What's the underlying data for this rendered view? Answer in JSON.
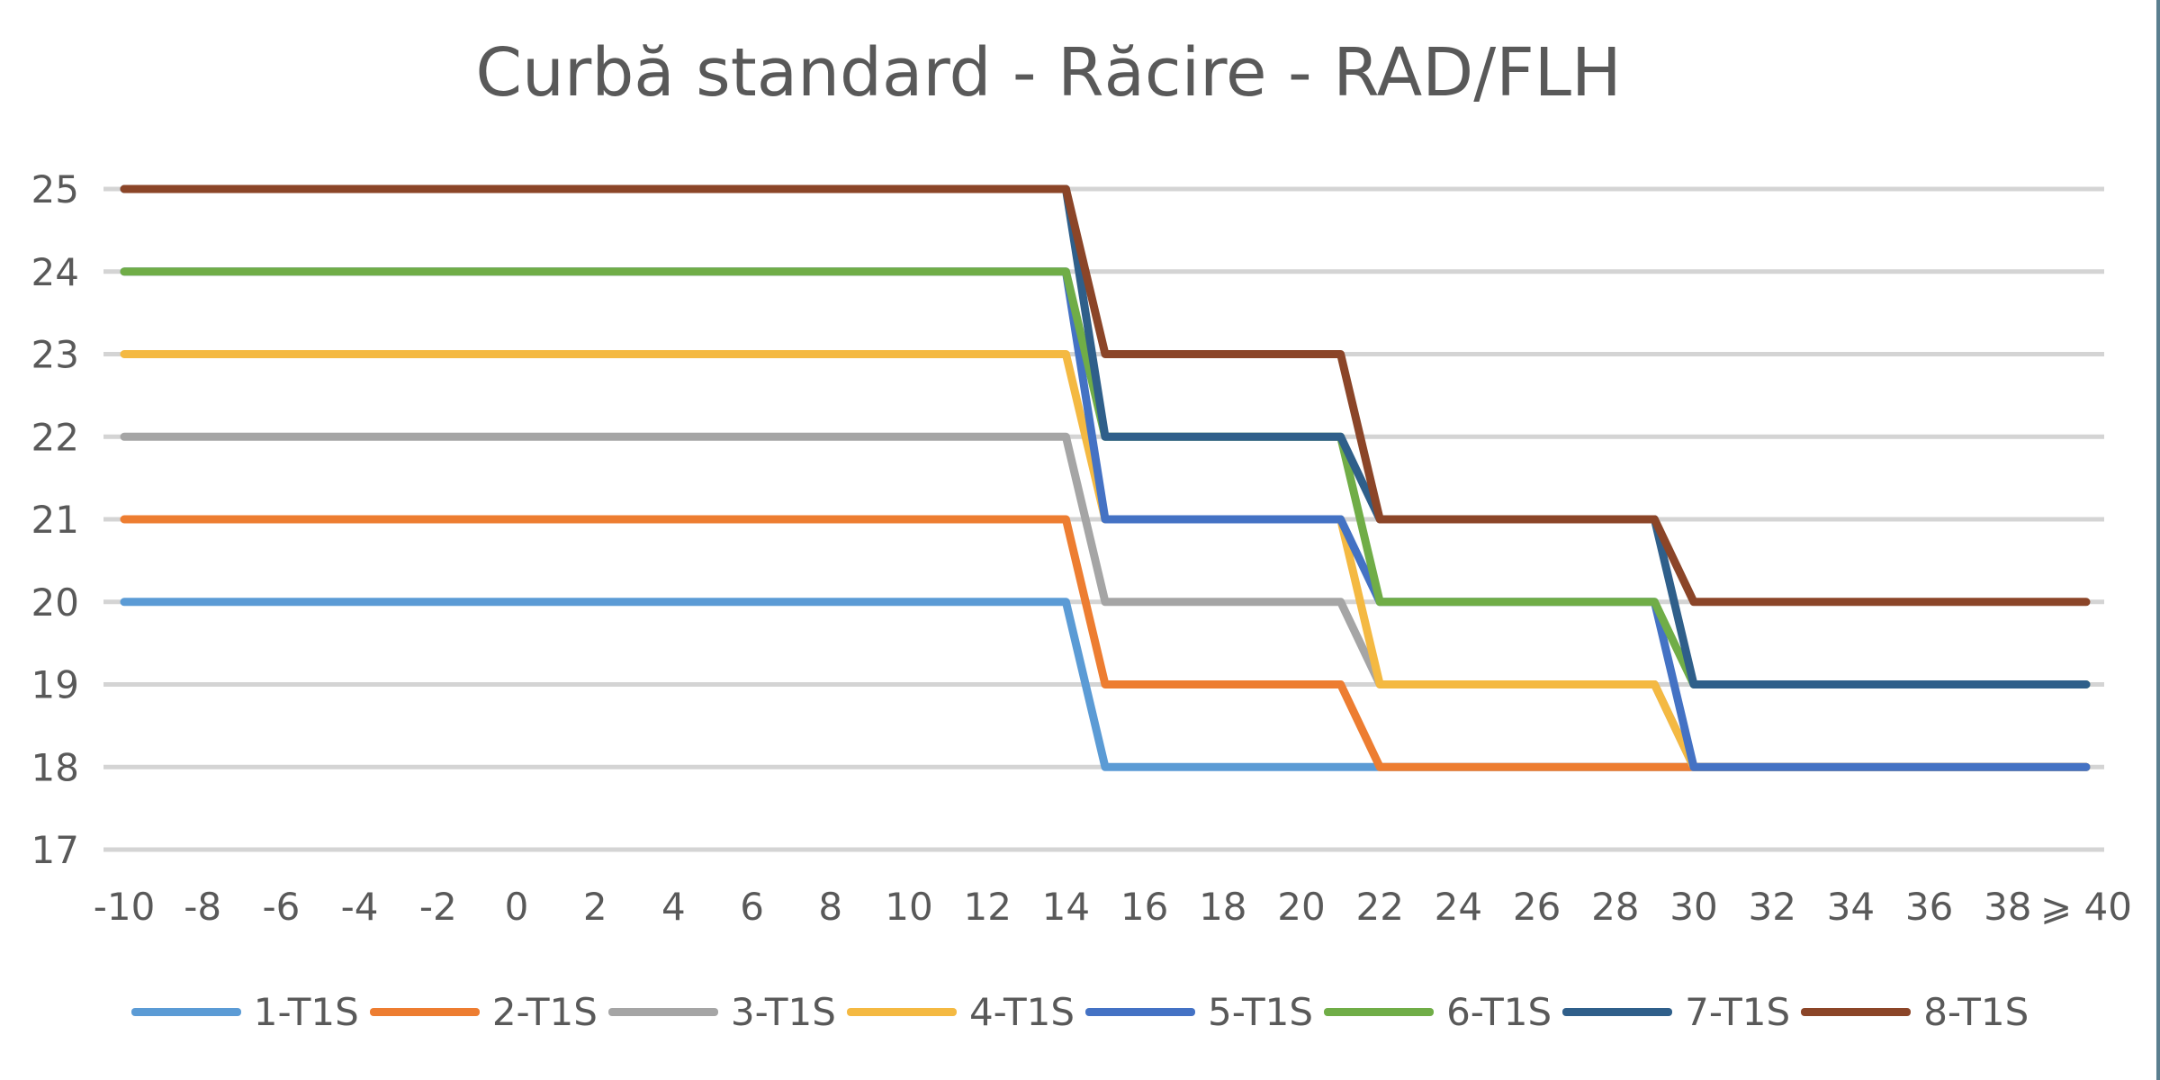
{
  "chart_data": {
    "type": "line",
    "title": "Curbă standard - Răcire - RAD/FLH",
    "xlabel": "",
    "ylabel": "",
    "categories": [
      "-10",
      "-8",
      "-6",
      "-4",
      "-2",
      "0",
      "2",
      "4",
      "6",
      "8",
      "10",
      "12",
      "14",
      "16",
      "18",
      "20",
      "22",
      "24",
      "26",
      "28",
      "30",
      "32",
      "34",
      "36",
      "38",
      "⩾ 40"
    ],
    "x": [
      -10,
      14,
      15,
      21,
      22,
      29,
      30,
      40
    ],
    "ylim": [
      17,
      25
    ],
    "yticks": [
      17,
      18,
      19,
      20,
      21,
      22,
      23,
      24,
      25
    ],
    "grid": true,
    "legend_position": "bottom",
    "series": [
      {
        "name": "1-T1S",
        "color": "#5b9bd5",
        "values": [
          20,
          20,
          18,
          18,
          18,
          18,
          18,
          18
        ]
      },
      {
        "name": "2-T1S",
        "color": "#ed7d31",
        "values": [
          21,
          21,
          19,
          19,
          18,
          18,
          18,
          18
        ]
      },
      {
        "name": "3-T1S",
        "color": "#a5a5a5",
        "values": [
          22,
          22,
          20,
          20,
          19,
          19,
          18,
          18
        ]
      },
      {
        "name": "4-T1S",
        "color": "#f4b942",
        "values": [
          23,
          23,
          21,
          21,
          19,
          19,
          18,
          18
        ]
      },
      {
        "name": "5-T1S",
        "color": "#4472c4",
        "values": [
          24,
          24,
          21,
          21,
          20,
          20,
          18,
          18
        ]
      },
      {
        "name": "6-T1S",
        "color": "#70ad47",
        "values": [
          24,
          24,
          22,
          22,
          20,
          20,
          19,
          19
        ]
      },
      {
        "name": "7-T1S",
        "color": "#2f5f8a",
        "values": [
          25,
          25,
          22,
          22,
          21,
          21,
          19,
          19
        ]
      },
      {
        "name": "8-T1S",
        "color": "#8b4528",
        "values": [
          25,
          25,
          23,
          23,
          21,
          21,
          20,
          20
        ]
      }
    ]
  }
}
